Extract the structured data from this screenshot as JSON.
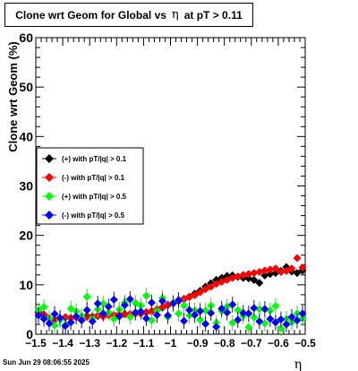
{
  "title": {
    "prefix": "Clone wrt Geom for Global vs",
    "symbol": "η",
    "suffix": "at pT > 0.11"
  },
  "date_stamp": "Sun Jun 29 08:06:55 2025",
  "colors": {
    "series": [
      "#000000",
      "#ff0000",
      "#00ff00",
      "#0000ff"
    ]
  },
  "chart_data": {
    "type": "scatter",
    "title": "Clone wrt Geom for Global vs η at pT > 0.11",
    "xlabel": "η",
    "ylabel": "Clone wrt Geom (%)",
    "xlim": [
      -1.5,
      -0.5
    ],
    "ylim": [
      0,
      60
    ],
    "x_ticks": [
      -1.5,
      -1.4,
      -1.3,
      -1.2,
      -1.1,
      -1,
      -0.9,
      -0.8,
      -0.7,
      -0.6,
      -0.5
    ],
    "x_tick_labels": [
      "−1.5",
      "−1.4",
      "−1.3",
      "−1.2",
      "−1.1",
      "−1",
      "−0.9",
      "−0.8",
      "−0.7",
      "−0.6",
      "−0.5"
    ],
    "y_ticks": [
      0,
      10,
      20,
      30,
      40,
      50,
      60
    ],
    "y_tick_labels": [
      "0",
      "10",
      "20",
      "30",
      "40",
      "50",
      "60"
    ],
    "grid": false,
    "legend_position": "center-left",
    "marker": "diamond",
    "x": [
      -1.49,
      -1.47,
      -1.45,
      -1.43,
      -1.41,
      -1.39,
      -1.37,
      -1.35,
      -1.33,
      -1.31,
      -1.29,
      -1.27,
      -1.25,
      -1.23,
      -1.21,
      -1.19,
      -1.17,
      -1.15,
      -1.13,
      -1.11,
      -1.09,
      -1.07,
      -1.05,
      -1.03,
      -1.01,
      -0.99,
      -0.97,
      -0.95,
      -0.93,
      -0.91,
      -0.89,
      -0.87,
      -0.85,
      -0.83,
      -0.81,
      -0.79,
      -0.77,
      -0.75,
      -0.73,
      -0.71,
      -0.69,
      -0.67,
      -0.65,
      -0.63,
      -0.61,
      -0.59,
      -0.57,
      -0.55,
      -0.53,
      -0.51
    ],
    "series": [
      {
        "name": "(+) with pT/|q| > 0.1",
        "values": [
          4.4,
          3.9,
          3.2,
          2.9,
          3.1,
          3.4,
          3.3,
          3.5,
          3.6,
          3.7,
          3.6,
          3.7,
          3.8,
          3.9,
          3.9,
          4.0,
          4.1,
          4.1,
          4.2,
          4.2,
          4.4,
          4.6,
          5.0,
          5.4,
          5.9,
          6.3,
          6.7,
          7.1,
          7.6,
          8.2,
          8.8,
          9.6,
          10.3,
          11.0,
          11.4,
          11.8,
          11.9,
          11.6,
          11.4,
          11.3,
          11.0,
          10.4,
          11.9,
          12.2,
          12.4,
          12.8,
          13.6,
          12.7,
          12.4,
          12.9
        ]
      },
      {
        "name": "(-) with pT/|q| > 0.1",
        "values": [
          4.6,
          4.0,
          3.3,
          3.0,
          3.2,
          3.5,
          3.3,
          3.4,
          3.6,
          3.5,
          3.6,
          3.8,
          3.6,
          3.8,
          3.9,
          4.0,
          4.0,
          4.1,
          4.2,
          4.3,
          4.5,
          4.7,
          5.1,
          5.5,
          6.0,
          6.4,
          6.8,
          7.2,
          7.5,
          7.9,
          8.5,
          9.1,
          9.6,
          10.2,
          10.6,
          11.0,
          11.4,
          11.7,
          12.0,
          12.2,
          12.4,
          12.6,
          12.9,
          13.1,
          13.3,
          12.6,
          12.8,
          13.3,
          15.4,
          13.5
        ]
      },
      {
        "name": "(+) with pT/|q| > 0.5",
        "values": [
          4.9,
          5.5,
          3.2,
          1.8,
          2.9,
          1.9,
          5.2,
          4.6,
          3.6,
          7.6,
          3.2,
          5.0,
          6.2,
          4.4,
          3.1,
          5.0,
          6.4,
          3.5,
          6.3,
          5.8,
          7.8,
          2.8,
          4.8,
          7.3,
          3.5,
          6.4,
          4.2,
          5.8,
          3.8,
          4.8,
          2.9,
          4.8,
          5.8,
          2.3,
          4.7,
          5.6,
          2.3,
          4.9,
          3.7,
          1.4,
          3.4,
          5.1,
          2.2,
          4.8,
          5.7,
          1.2,
          3.1,
          2.4,
          4.2,
          3.2
        ]
      },
      {
        "name": "(-) with pT/|q| > 0.5",
        "values": [
          3.8,
          3.1,
          2.2,
          4.1,
          3.3,
          1.7,
          2.4,
          3.6,
          2.8,
          4.9,
          2.6,
          6.2,
          4.2,
          5.6,
          7.0,
          3.6,
          5.9,
          7.1,
          4.4,
          4.6,
          3.2,
          6.4,
          3.9,
          6.7,
          3.8,
          6.2,
          6.9,
          2.7,
          4.9,
          3.9,
          4.7,
          2.1,
          4.3,
          1.5,
          5.2,
          4.4,
          6.0,
          2.9,
          4.3,
          4.2,
          5.3,
          2.6,
          5.1,
          3.1,
          2.4,
          3.0,
          2.0,
          3.5,
          2.8,
          4.2
        ]
      }
    ]
  }
}
